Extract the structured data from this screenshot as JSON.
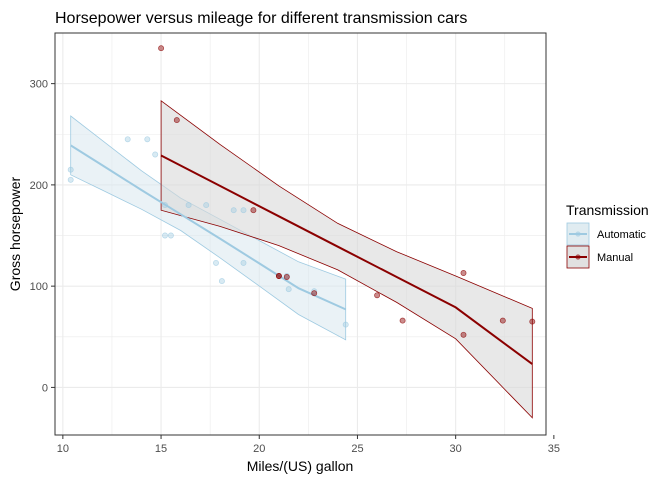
{
  "chart_data": {
    "type": "scatter",
    "title": "Horsepower versus mileage for different transmission cars",
    "xlabel": "Miles/(US) gallon",
    "ylabel": "Gross horsepower",
    "xlim": [
      9.6,
      34.6
    ],
    "ylim": [
      -47,
      350
    ],
    "xticks": [
      10,
      15,
      20,
      25,
      30,
      35
    ],
    "yticks": [
      0,
      100,
      200,
      300
    ],
    "grid": true,
    "legend": {
      "title": "Transmission",
      "position": "right"
    },
    "series": [
      {
        "name": "Automatic",
        "color": "#9ecae1",
        "fill": "#d8e7ee",
        "points": [
          [
            10.4,
            205
          ],
          [
            10.4,
            215
          ],
          [
            13.3,
            245
          ],
          [
            14.3,
            245
          ],
          [
            14.7,
            230
          ],
          [
            15.2,
            150
          ],
          [
            15.2,
            180
          ],
          [
            15.5,
            150
          ],
          [
            16.4,
            180
          ],
          [
            17.3,
            180
          ],
          [
            17.8,
            123
          ],
          [
            18.1,
            105
          ],
          [
            18.7,
            175
          ],
          [
            19.2,
            175
          ],
          [
            19.2,
            123
          ],
          [
            21.4,
            110
          ],
          [
            21.5,
            97
          ],
          [
            22.8,
            95
          ],
          [
            24.4,
            62
          ]
        ],
        "fit": {
          "x": [
            10.4,
            12.0,
            14.0,
            16.0,
            18.0,
            20.0,
            22.0,
            24.4
          ],
          "y": [
            239,
            219.5,
            195,
            171,
            147,
            122.5,
            98,
            77
          ],
          "lower": [
            210,
            195,
            176,
            155,
            128,
            100,
            72,
            47
          ],
          "upper": [
            268,
            244,
            214,
            187,
            166,
            145,
            124,
            107
          ]
        }
      },
      {
        "name": "Manual",
        "color": "#8b0000",
        "fill": "#d9d9d9",
        "points": [
          [
            15.0,
            335
          ],
          [
            15.8,
            264
          ],
          [
            19.7,
            175
          ],
          [
            21.0,
            110
          ],
          [
            21.0,
            110
          ],
          [
            21.4,
            109
          ],
          [
            22.8,
            93
          ],
          [
            26.0,
            91
          ],
          [
            27.3,
            66
          ],
          [
            30.4,
            52
          ],
          [
            30.4,
            113
          ],
          [
            32.4,
            66
          ],
          [
            33.9,
            65
          ]
        ],
        "fit": {
          "x": [
            15.0,
            18.0,
            21.0,
            24.0,
            27.0,
            30.0,
            33.9
          ],
          "y": [
            229,
            199,
            169,
            139,
            109,
            79,
            23
          ],
          "lower": [
            175,
            159,
            140,
            116,
            84,
            48,
            -30
          ],
          "upper": [
            283,
            240,
            199,
            162,
            134,
            110,
            78
          ]
        }
      }
    ]
  }
}
